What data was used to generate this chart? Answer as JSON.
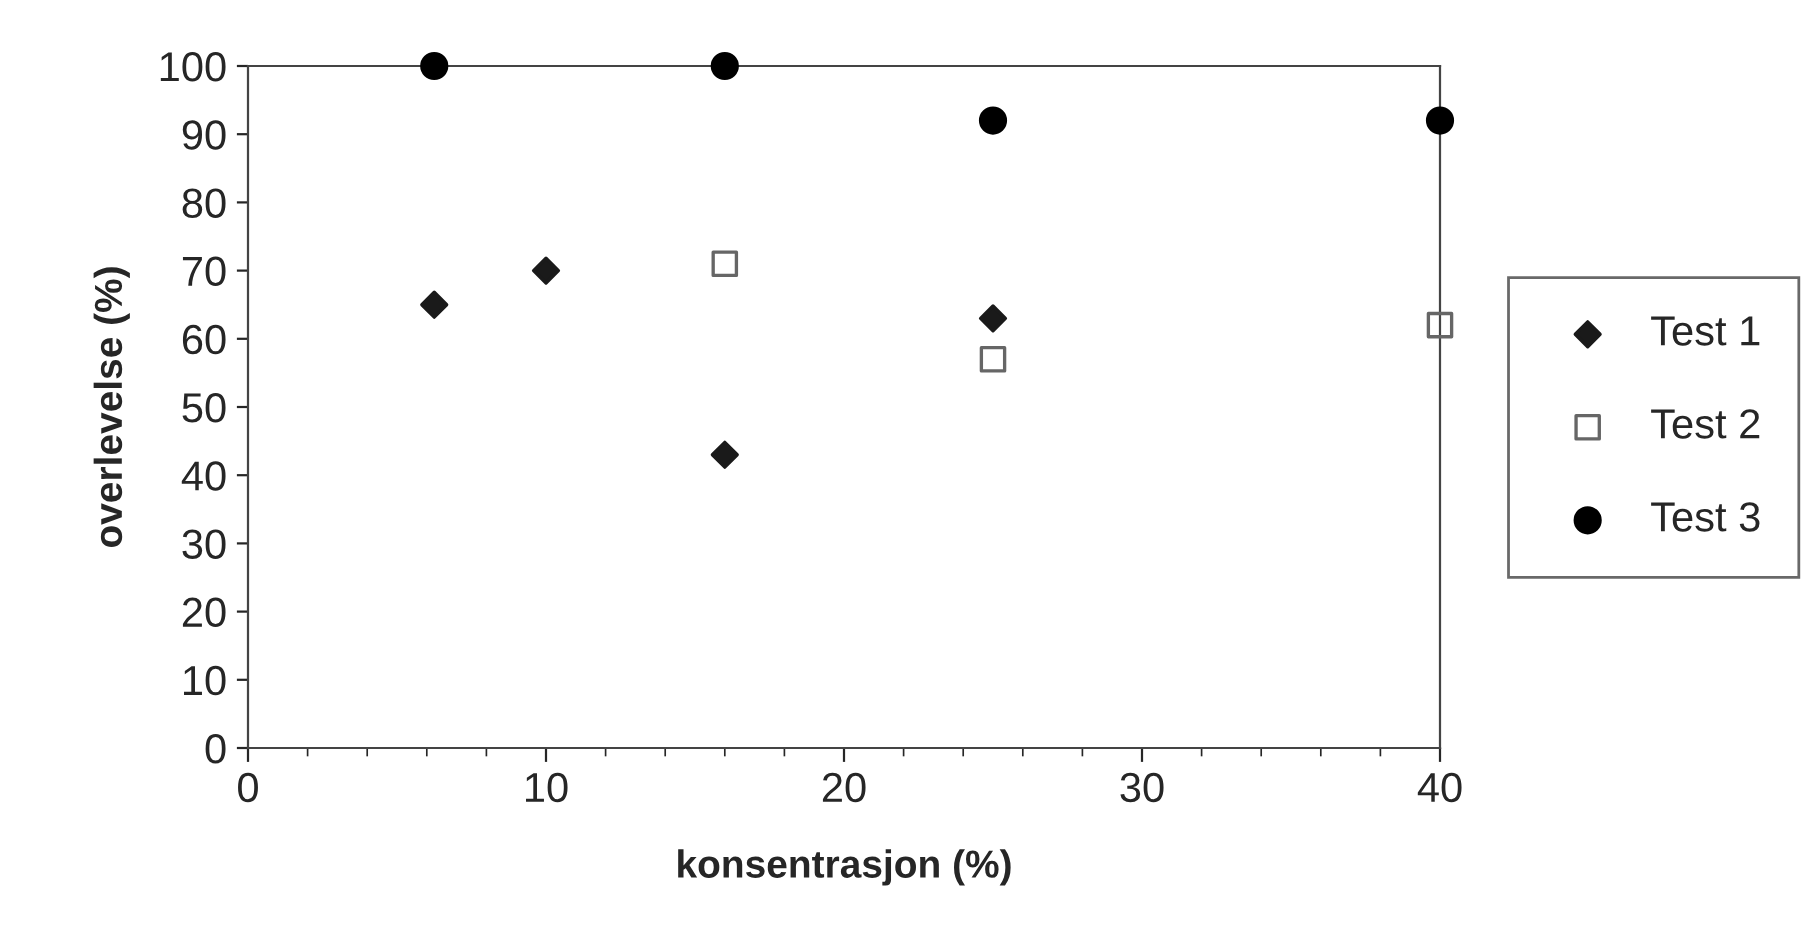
{
  "chart_data": {
    "type": "scatter",
    "xlabel": "konsentrasjon (%)",
    "ylabel": "overlevelse (%)",
    "series": [
      {
        "name": "Test 1",
        "color": "#1a1a1a",
        "marker": "diamond",
        "x": [
          6.25,
          10,
          16,
          25
        ],
        "values": [
          65,
          70,
          43,
          63
        ]
      },
      {
        "name": "Test 2",
        "color": "#666666",
        "marker": "square",
        "x": [
          16,
          25,
          40
        ],
        "values": [
          71,
          57,
          62
        ]
      },
      {
        "name": "Test 3",
        "color": "#000000",
        "marker": "circle",
        "x": [
          6.25,
          16,
          25,
          40
        ],
        "values": [
          100,
          100,
          92,
          92
        ]
      }
    ],
    "xlim": [
      0,
      40
    ],
    "xticks": [
      0,
      10,
      20,
      30,
      40
    ],
    "ylim": [
      0,
      100
    ],
    "yticks": [
      0,
      10,
      20,
      30,
      40,
      50,
      60,
      70,
      80,
      90,
      100
    ],
    "grid": false,
    "legend": "right"
  }
}
